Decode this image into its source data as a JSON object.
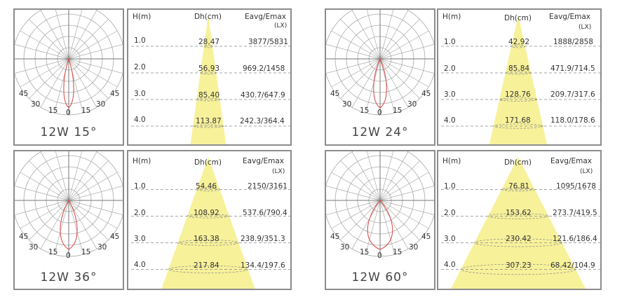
{
  "colors": {
    "beam": "#f7f19a",
    "curve": "#d9534f",
    "grid": "#aaaaaa",
    "border": "#8c8c8c",
    "dash": "#888888"
  },
  "polar_ticks": {
    "outer_left": "45",
    "mid_left": "30",
    "inner_left": "15",
    "center": "0",
    "inner_right": "15",
    "mid_right": "30",
    "outer_right": "45"
  },
  "header": {
    "h": "H(m)",
    "dh": "Dh(cm)",
    "eavg": "Eavg/Emax",
    "unit": "(LX)"
  },
  "diagrams": [
    {
      "label": "12W 15°",
      "rows": [
        {
          "h": "1.0",
          "dh": "28.47",
          "e": "3877/5831"
        },
        {
          "h": "2.0",
          "dh": "56.93",
          "e": "969.2/1458"
        },
        {
          "h": "3.0",
          "dh": "85.40",
          "e": "430.7/647.9"
        },
        {
          "h": "4.0",
          "dh": "113.87",
          "e": "242.3/364.4"
        }
      ]
    },
    {
      "label": "12W 24°",
      "rows": [
        {
          "h": "1.0",
          "dh": "42.92",
          "e": "1888/2858"
        },
        {
          "h": "2.0",
          "dh": "85.84",
          "e": "471.9/714.5"
        },
        {
          "h": "3.0",
          "dh": "128.76",
          "e": "209.7/317.6"
        },
        {
          "h": "4.0",
          "dh": "171.68",
          "e": "118.0/178.6"
        }
      ]
    },
    {
      "label": "12W 36°",
      "rows": [
        {
          "h": "1.0",
          "dh": "54.46",
          "e": "2150/3161"
        },
        {
          "h": "2.0",
          "dh": "108.92",
          "e": "537.6/790.4"
        },
        {
          "h": "3.0",
          "dh": "163.38",
          "e": "238.9/351.3"
        },
        {
          "h": "4.0",
          "dh": "217.84",
          "e": "134.4/197.6"
        }
      ]
    },
    {
      "label": "12W 60°",
      "rows": [
        {
          "h": "1.0",
          "dh": "76.81",
          "e": "1095/1678"
        },
        {
          "h": "2.0",
          "dh": "153.62",
          "e": "273.7/419.5"
        },
        {
          "h": "3.0",
          "dh": "230.42",
          "e": "121.6/186.4"
        },
        {
          "h": "4.0",
          "dh": "307.23",
          "e": "68.42/104.9"
        }
      ]
    }
  ]
}
